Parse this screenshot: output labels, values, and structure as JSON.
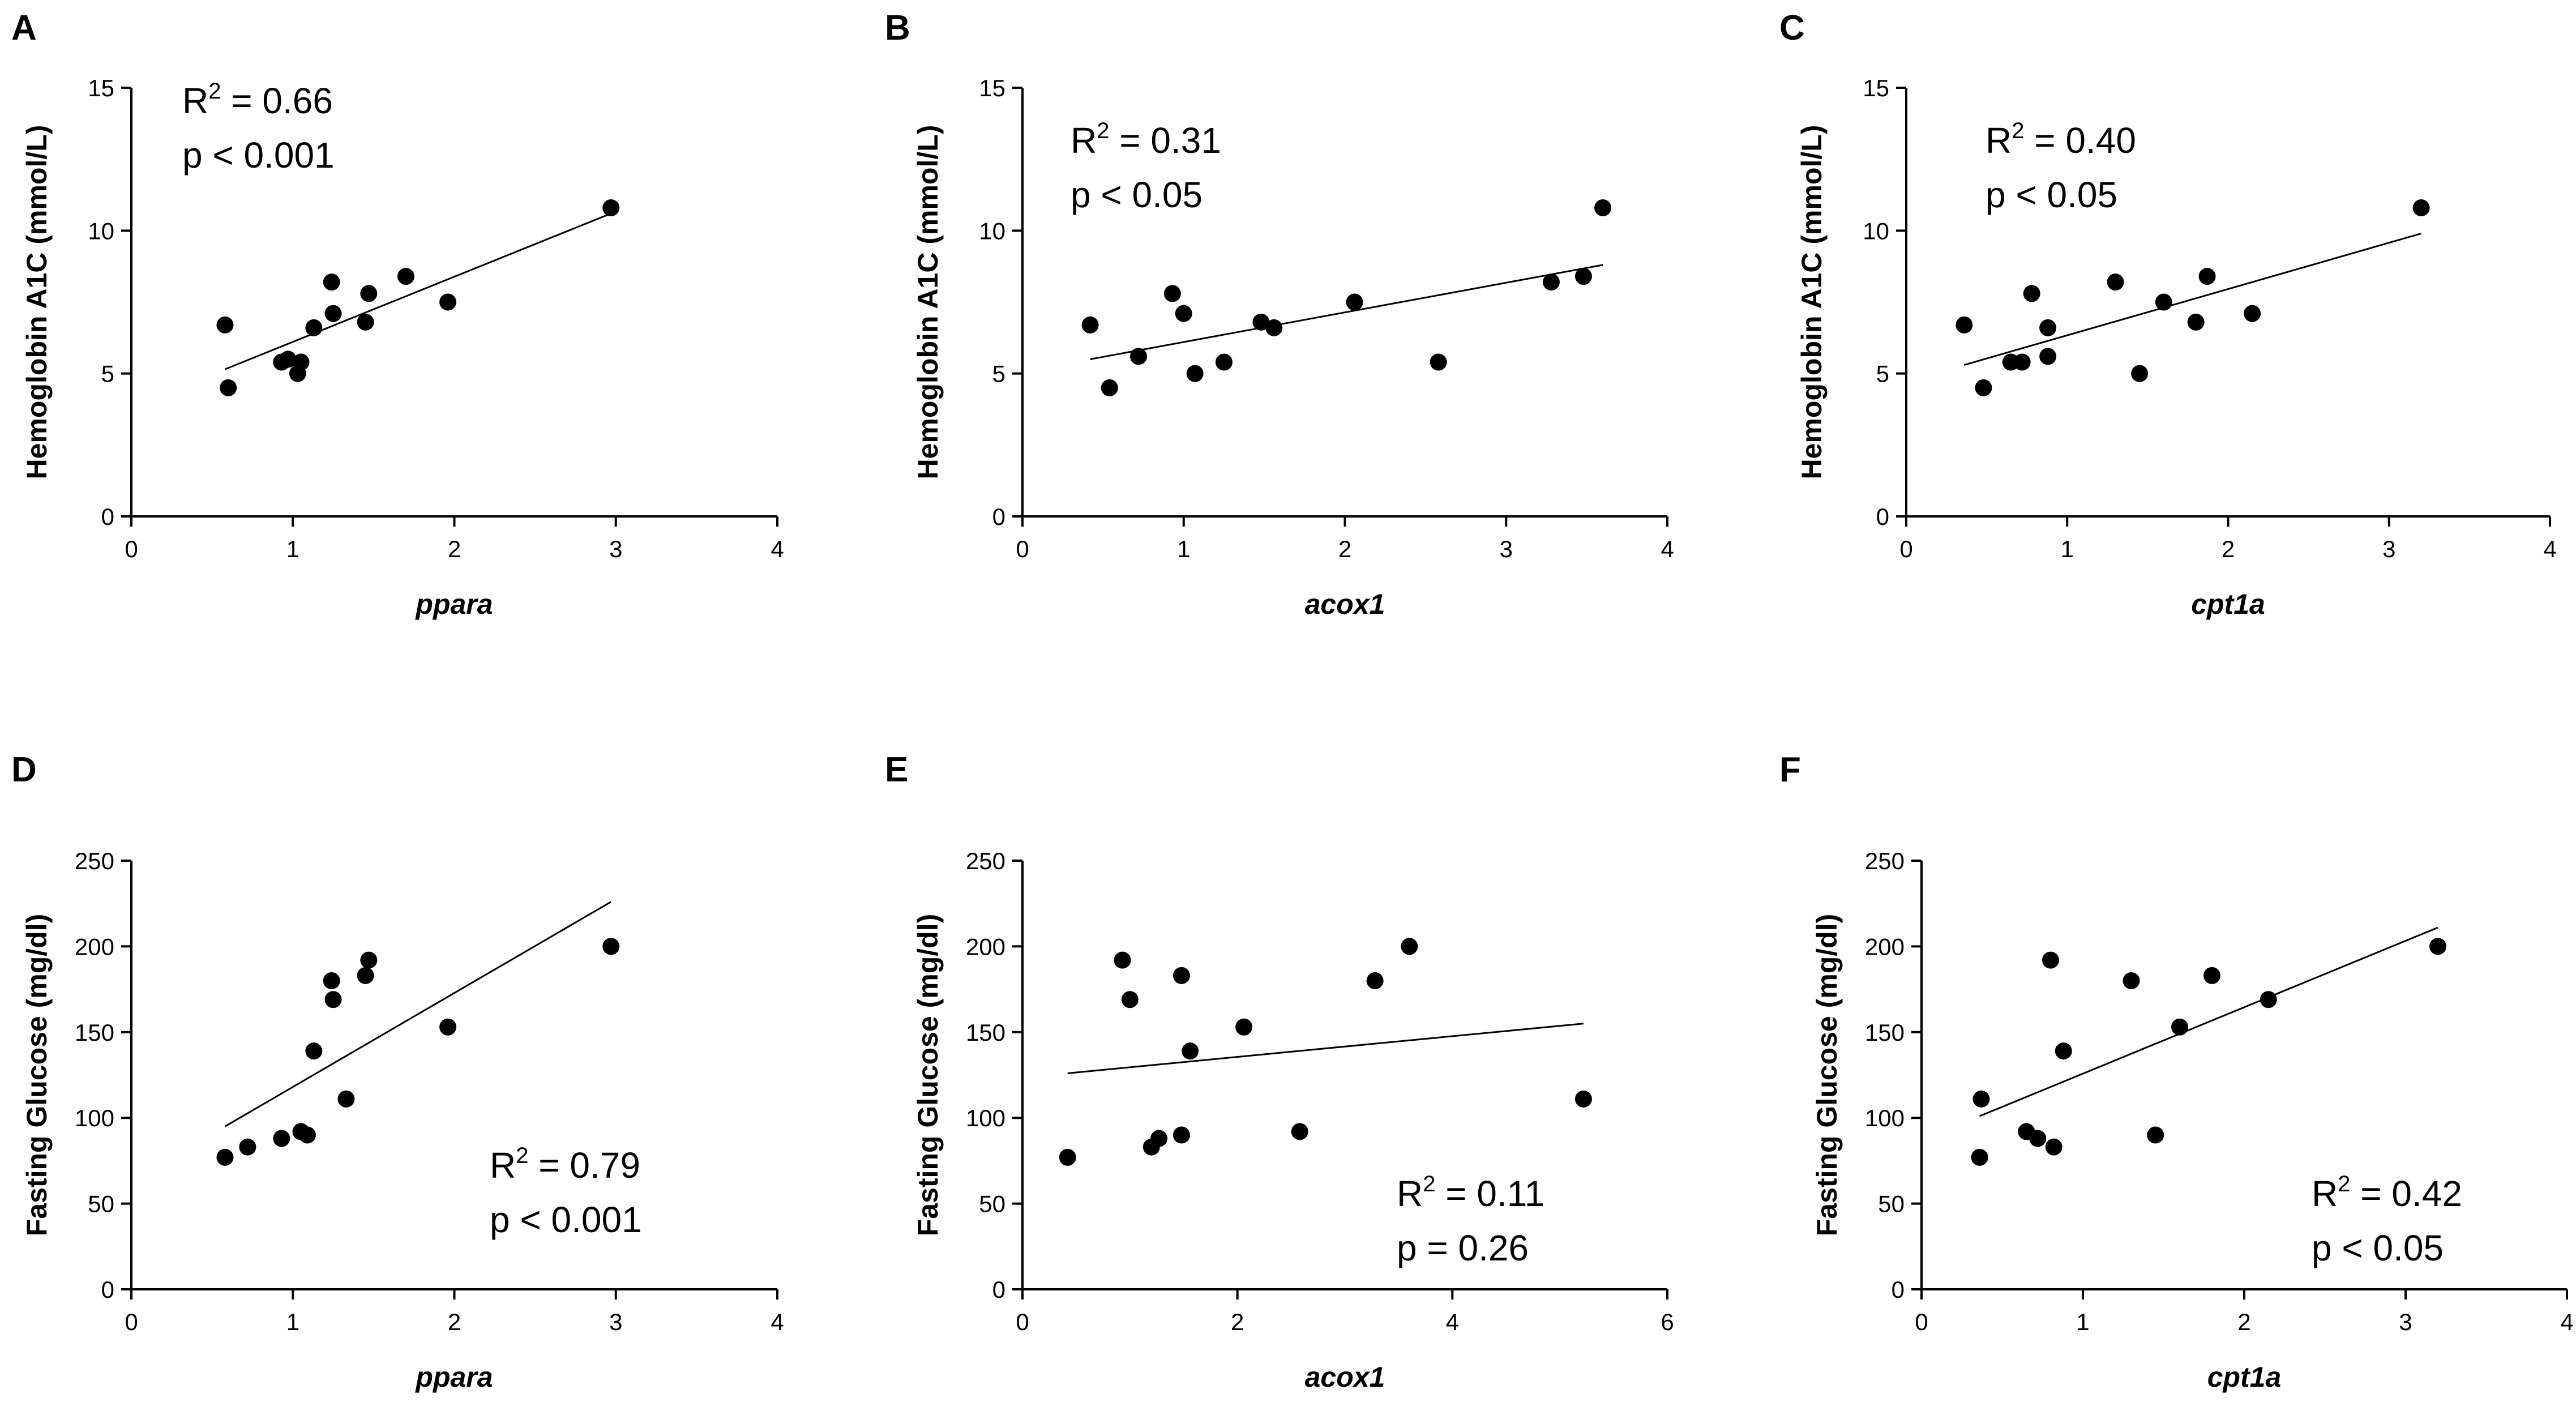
{
  "figure_title": "",
  "chart_data": [
    {
      "panel": "A",
      "type": "scatter",
      "title": "",
      "xlabel": "ppara",
      "ylabel": "Hemoglobin  A1C (mmol/L)",
      "xlim": [
        0,
        4
      ],
      "ylim": [
        0,
        15
      ],
      "xticks": [
        "0",
        "1",
        "2",
        "3",
        "4"
      ],
      "yticks": [
        "0",
        "5",
        "10",
        "15"
      ],
      "x": [
        0.58,
        0.6,
        0.93,
        0.97,
        1.03,
        1.05,
        1.13,
        1.24,
        1.25,
        1.45,
        1.47,
        1.7,
        1.96,
        2.97
      ],
      "y": [
        6.7,
        4.5,
        5.4,
        5.5,
        5.0,
        5.4,
        6.6,
        8.2,
        7.1,
        6.8,
        7.8,
        8.4,
        7.5,
        10.8
      ],
      "fit": {
        "x": [
          0.58,
          2.97
        ],
        "y": [
          5.15,
          10.6
        ]
      },
      "annotation": {
        "r2_prefix": "R",
        "r2_sup": "2",
        "r2_value": " = 0.66",
        "p_text": "p < 0.001"
      }
    },
    {
      "panel": "B",
      "type": "scatter",
      "title": "",
      "xlabel": "acox1",
      "ylabel": "Hemoglobin  A1C (mmol/L)",
      "xlim": [
        0,
        4
      ],
      "ylim": [
        0,
        15
      ],
      "xticks": [
        "0",
        "1",
        "2",
        "3",
        "4"
      ],
      "yticks": [
        "0",
        "5",
        "10",
        "15"
      ],
      "x": [
        0.42,
        0.54,
        0.72,
        0.93,
        1.0,
        1.07,
        1.25,
        1.48,
        1.56,
        2.06,
        2.58,
        3.28,
        3.48,
        3.6
      ],
      "y": [
        6.7,
        4.5,
        5.6,
        7.8,
        7.1,
        5.0,
        5.4,
        6.8,
        6.6,
        7.5,
        5.4,
        8.2,
        8.4,
        10.8
      ],
      "fit": {
        "x": [
          0.42,
          3.6
        ],
        "y": [
          5.5,
          8.8
        ]
      },
      "annotation": {
        "r2_prefix": "R",
        "r2_sup": "2",
        "r2_value": " = 0.31",
        "p_text": "p < 0.05"
      }
    },
    {
      "panel": "C",
      "type": "scatter",
      "title": "",
      "xlabel": "cpt1a",
      "ylabel": "Hemoglobin  A1C (mmol/L)",
      "xlim": [
        0,
        4
      ],
      "ylim": [
        0,
        15
      ],
      "xticks": [
        "0",
        "1",
        "2",
        "3",
        "4"
      ],
      "yticks": [
        "0",
        "5",
        "10",
        "15"
      ],
      "x": [
        0.36,
        0.48,
        0.65,
        0.72,
        0.78,
        0.88,
        0.88,
        1.3,
        1.45,
        1.6,
        1.8,
        1.87,
        2.15,
        3.2
      ],
      "y": [
        6.7,
        4.5,
        5.4,
        5.4,
        7.8,
        5.6,
        6.6,
        8.2,
        5.0,
        7.5,
        6.8,
        8.4,
        7.1,
        10.8
      ],
      "fit": {
        "x": [
          0.36,
          3.2
        ],
        "y": [
          5.3,
          9.9
        ]
      },
      "annotation": {
        "r2_prefix": "R",
        "r2_sup": "2",
        "r2_value": " = 0.40",
        "p_text": "p < 0.05"
      }
    },
    {
      "panel": "D",
      "type": "scatter",
      "title": "",
      "xlabel": "ppara",
      "ylabel": "Fasting Glucose (mg/dl)",
      "xlim": [
        0,
        4
      ],
      "ylim": [
        0,
        250
      ],
      "xticks": [
        "0",
        "1",
        "2",
        "3",
        "4"
      ],
      "yticks": [
        "0",
        "50",
        "100",
        "150",
        "200",
        "250"
      ],
      "x": [
        0.58,
        0.72,
        0.93,
        1.05,
        1.09,
        1.13,
        1.24,
        1.25,
        1.33,
        1.45,
        1.47,
        1.96,
        2.97
      ],
      "y": [
        77,
        83,
        88,
        92,
        90,
        139,
        180,
        169,
        111,
        183,
        192,
        153,
        200
      ],
      "fit": {
        "x": [
          0.58,
          2.97
        ],
        "y": [
          95,
          226
        ]
      },
      "annotation": {
        "r2_prefix": "R",
        "r2_sup": "2",
        "r2_value": " = 0.79",
        "p_text": "p < 0.001"
      }
    },
    {
      "panel": "E",
      "type": "scatter",
      "title": "",
      "xlabel": "acox1",
      "ylabel": "Fasting Glucose (mg/dl)",
      "xlim": [
        0,
        6
      ],
      "ylim": [
        0,
        250
      ],
      "xticks": [
        "0",
        "2",
        "4",
        "6"
      ],
      "yticks": [
        "0",
        "50",
        "100",
        "150",
        "200",
        "250"
      ],
      "x": [
        0.42,
        0.93,
        1.0,
        1.2,
        1.27,
        1.48,
        1.48,
        1.56,
        2.06,
        2.58,
        3.28,
        3.6,
        5.22
      ],
      "y": [
        77,
        192,
        169,
        83,
        88,
        90,
        183,
        139,
        153,
        92,
        180,
        200,
        111
      ],
      "fit": {
        "x": [
          0.42,
          5.22
        ],
        "y": [
          126,
          155
        ]
      },
      "annotation": {
        "r2_prefix": "R",
        "r2_sup": "2",
        "r2_value": " = 0.11",
        "p_text": "p = 0.26"
      }
    },
    {
      "panel": "F",
      "type": "scatter",
      "title": "",
      "xlabel": "cpt1a",
      "ylabel": "Fasting Glucose (mg/dl)",
      "xlim": [
        0,
        4
      ],
      "ylim": [
        0,
        250
      ],
      "xticks": [
        "0",
        "1",
        "2",
        "3",
        "4"
      ],
      "yticks": [
        "0",
        "50",
        "100",
        "150",
        "200",
        "250"
      ],
      "x": [
        0.36,
        0.37,
        0.65,
        0.72,
        0.8,
        0.82,
        0.88,
        1.3,
        1.45,
        1.6,
        1.8,
        2.15,
        3.2
      ],
      "y": [
        77,
        111,
        92,
        88,
        192,
        83,
        139,
        180,
        90,
        153,
        183,
        169,
        200
      ],
      "fit": {
        "x": [
          0.36,
          3.2
        ],
        "y": [
          101,
          211
        ]
      },
      "annotation": {
        "r2_prefix": "R",
        "r2_sup": "2",
        "r2_value": " = 0.42",
        "p_text": "p < 0.05"
      }
    }
  ]
}
